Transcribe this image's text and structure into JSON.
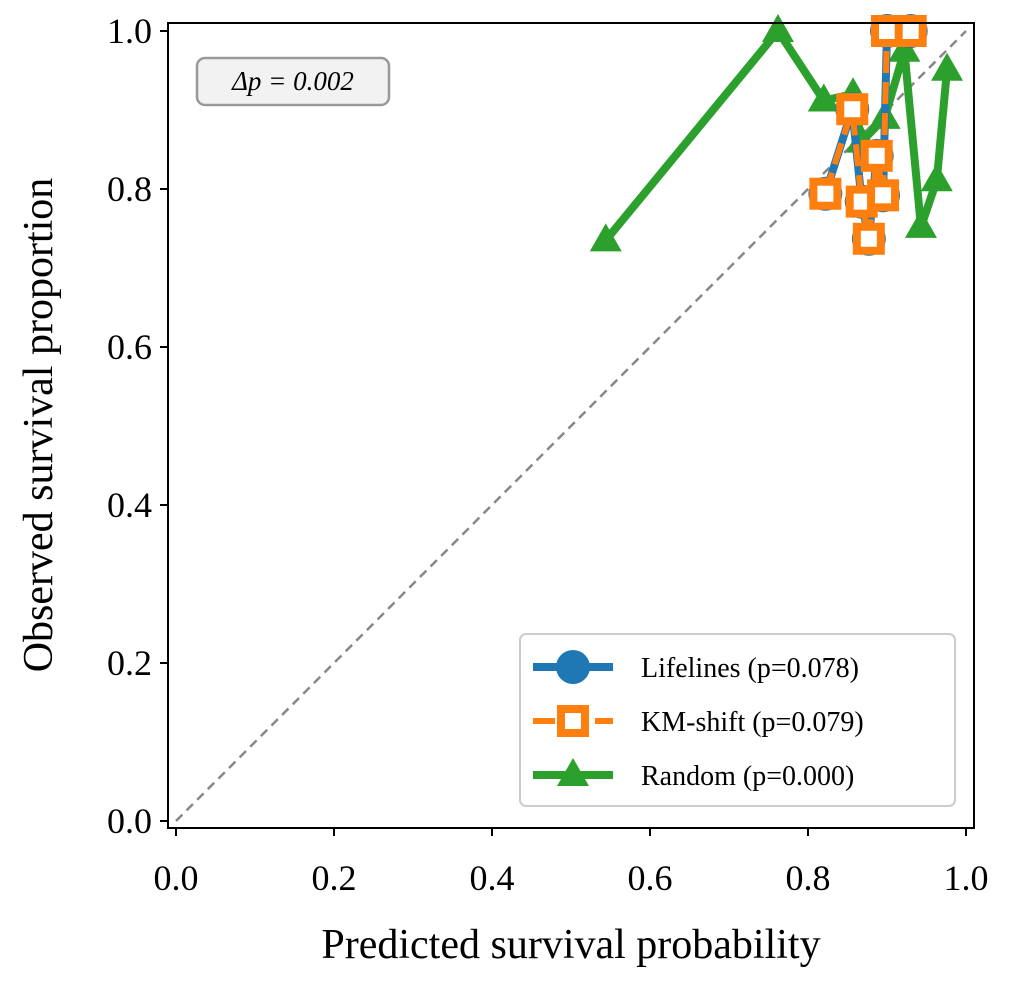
{
  "chart_data": {
    "type": "line",
    "title": "",
    "xlabel": "Predicted survival probability",
    "ylabel": "Observed survival proportion",
    "xlim": [
      -0.01,
      1.01
    ],
    "ylim": [
      -0.01,
      1.01
    ],
    "xticks": [
      "0.0",
      "0.2",
      "0.4",
      "0.6",
      "0.8",
      "1.0"
    ],
    "yticks": [
      "0.0",
      "0.2",
      "0.4",
      "0.6",
      "0.8",
      "1.0"
    ],
    "grid": false,
    "legend_position": "lower-right",
    "annotation": "Δp = 0.002",
    "reference_line": {
      "type": "diagonal",
      "color": "#888888",
      "style": "dashed"
    },
    "series": [
      {
        "name": "Lifelines (p=0.078)",
        "color": "#1f77b4",
        "marker": "circle",
        "x": [
          0.822,
          0.856,
          0.868,
          0.877,
          0.887,
          0.895,
          0.9,
          0.93
        ],
        "y": [
          0.794,
          0.901,
          0.784,
          0.737,
          0.842,
          0.792,
          1.0,
          1.0
        ]
      },
      {
        "name": "KM-shift (p=0.079)",
        "color": "#ff7f0e",
        "marker": "square-open",
        "style": "dashed",
        "x": [
          0.822,
          0.856,
          0.868,
          0.877,
          0.887,
          0.895,
          0.9,
          0.93
        ],
        "y": [
          0.794,
          0.901,
          0.784,
          0.737,
          0.842,
          0.792,
          1.0,
          1.0
        ]
      },
      {
        "name": "Random (p=0.000)",
        "color": "#2ca02c",
        "marker": "triangle",
        "x": [
          0.544,
          0.762,
          0.82,
          0.857,
          0.868,
          0.897,
          0.922,
          0.943,
          0.963,
          0.976
        ],
        "y": [
          0.735,
          1.0,
          0.912,
          0.92,
          0.86,
          0.89,
          0.975,
          0.752,
          0.811,
          0.951
        ]
      }
    ]
  }
}
